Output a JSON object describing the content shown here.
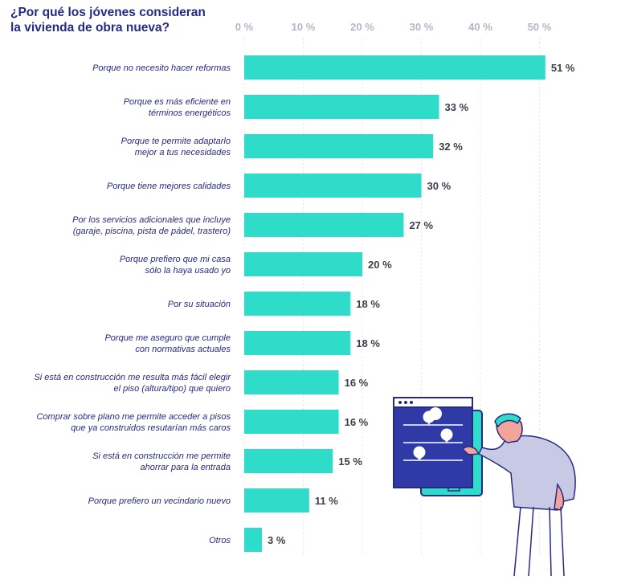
{
  "chart_data": {
    "type": "bar",
    "orientation": "horizontal",
    "title_lines": [
      "¿Por qué los jóvenes consideran",
      "la vivienda de obra nueva?"
    ],
    "x_ticks": [
      "0 %",
      "10 %",
      "20 %",
      "30 %",
      "40 %",
      "50 %"
    ],
    "xlim": [
      0,
      50
    ],
    "unit": "%",
    "bar_color": "#2fdcca",
    "categories": [
      [
        "Porque no necesito hacer reformas"
      ],
      [
        "Porque es más eficiente en",
        "términos energéticos"
      ],
      [
        "Porque te permite adaptarlo",
        "mejor a tus necesidades"
      ],
      [
        "Porque tiene mejores calidades"
      ],
      [
        "Por los servicios adicionales que incluye",
        "(garaje, piscina, pista de pádel, trastero)"
      ],
      [
        "Porque prefiero que mi casa",
        "sólo la haya usado yo"
      ],
      [
        "Por su situación"
      ],
      [
        "Porque me aseguro que cumple",
        "con normativas actuales"
      ],
      [
        "Si está en construcción me resulta más fácil elegir",
        "el piso (altura/tipo) que quiero"
      ],
      [
        "Comprar sobre plano me permite acceder a pisos",
        "que ya construidos resutarían más caros"
      ],
      [
        "Si está en construcción me permite",
        "ahorrar para la entrada"
      ],
      [
        "Porque prefiero un vecindario nuevo"
      ],
      [
        "Otros"
      ]
    ],
    "values": [
      51,
      33,
      32,
      30,
      27,
      20,
      18,
      18,
      16,
      16,
      15,
      11,
      3
    ],
    "value_labels": [
      "51 %",
      "33 %",
      "32 %",
      "30 %",
      "27 %",
      "20 %",
      "18 %",
      "18 %",
      "16 %",
      "16 %",
      "15 %",
      "11 %",
      "3 %"
    ]
  }
}
